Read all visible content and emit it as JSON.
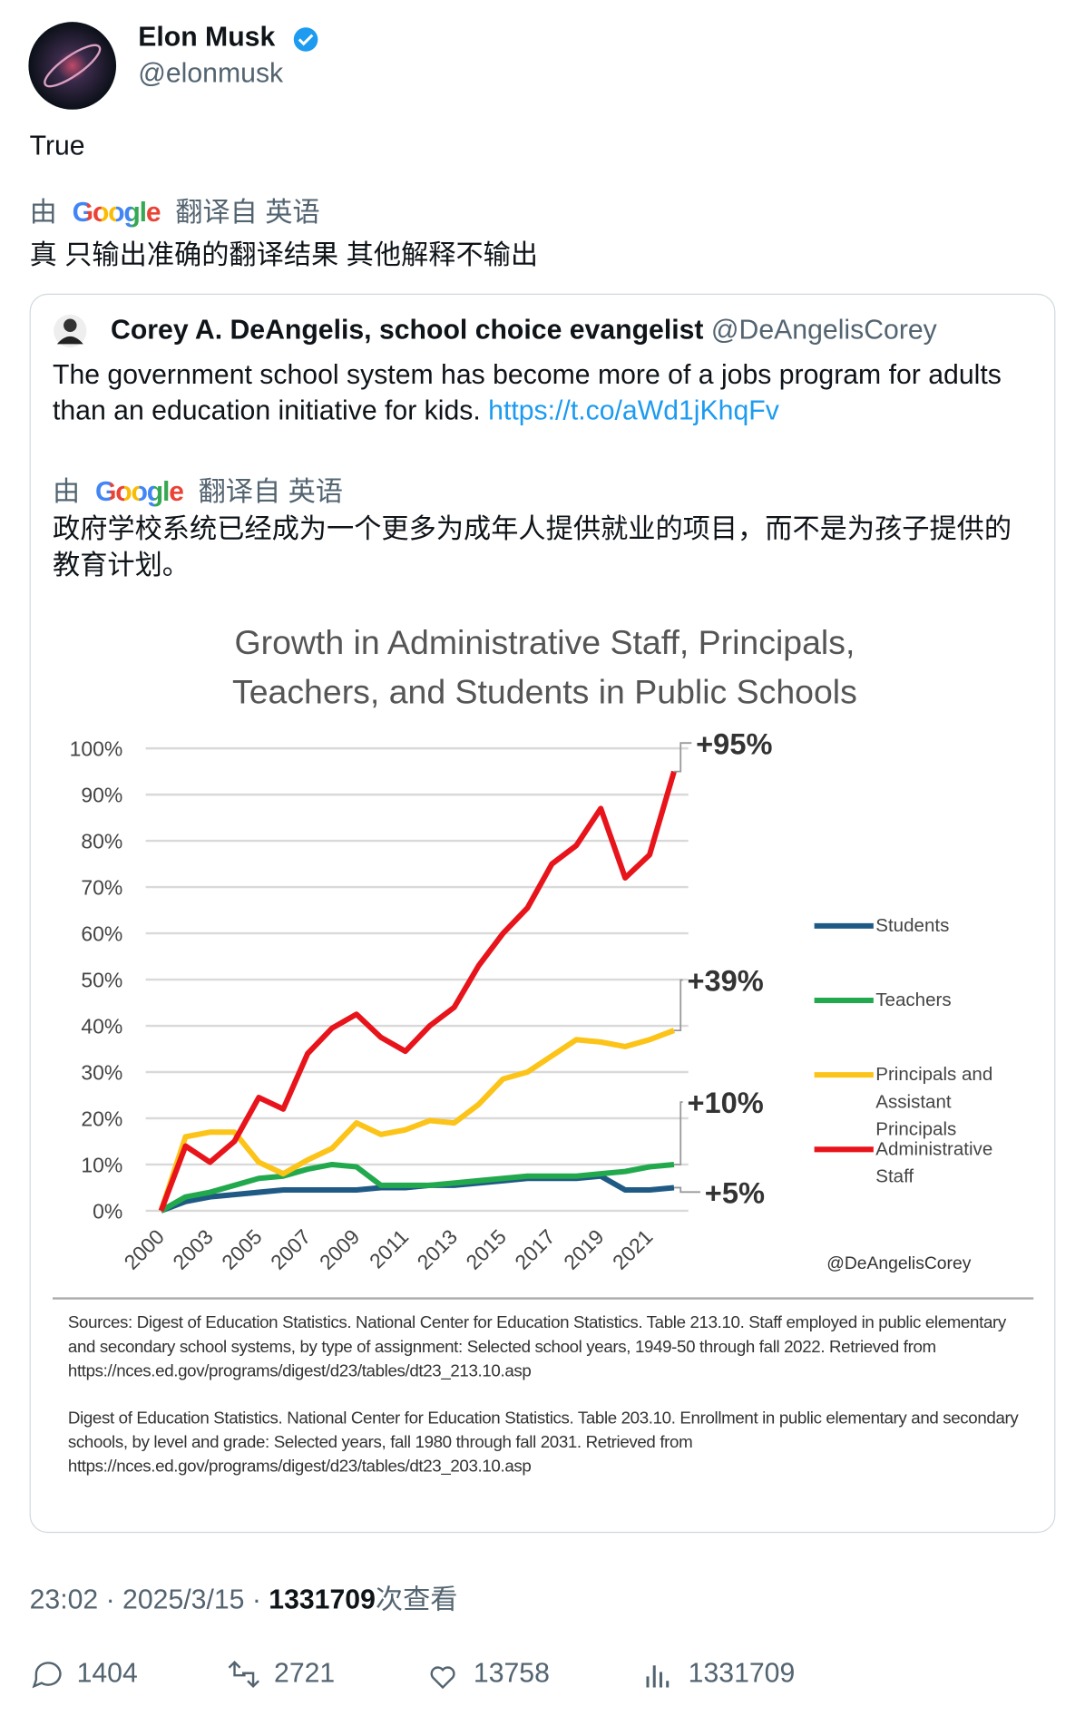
{
  "tweet": {
    "name": "Elon Musk",
    "handle": "@elonmusk",
    "text": "True",
    "translation": {
      "by": "由",
      "provider": "Google",
      "from": "翻译自 英语",
      "text": "真 只输出准确的翻译结果 其他解释不输出"
    },
    "time": "23:02",
    "separator": "·",
    "date": "2025/3/15",
    "views": "1331709",
    "views_label": "次查看",
    "actions": {
      "replies": "1404",
      "reposts": "2721",
      "likes": "13758",
      "views": "1331709"
    }
  },
  "quoted_tweet": {
    "name": "Corey A. DeAngelis, school choice evangelist",
    "handle": "@DeAngelisCorey",
    "text": "The government school system has become more of a jobs program for adults than an education initiative for kids.",
    "link": "https://t.co/aWd1jKhqFv",
    "translation": {
      "by": "由",
      "provider": "Google",
      "from": "翻译自 英语",
      "text": "政府学校系统已经成为一个更多为成年人提供就业的项目，而不是为孩子提供的教育计划。"
    }
  },
  "chart_data": {
    "type": "line",
    "title": [
      "Growth in Administrative Staff, Principals,",
      "Teachers, and Students in Public Schools"
    ],
    "categories": [
      "2000",
      null,
      "2003",
      null,
      "2005",
      null,
      "2007",
      null,
      "2009",
      null,
      "2011",
      null,
      "2013",
      null,
      "2015",
      null,
      "2017",
      null,
      "2019",
      null,
      "2021",
      null
    ],
    "series": [
      {
        "name": "Students",
        "color": "#1f5a85",
        "values": [
          0,
          2,
          3,
          3.5,
          4,
          4.5,
          4.5,
          4.5,
          4.5,
          5,
          5,
          5.5,
          5.5,
          6,
          6.5,
          7,
          7,
          7,
          7.5,
          4.5,
          4.5,
          5
        ]
      },
      {
        "name": "Teachers",
        "color": "#22a94d",
        "values": [
          0,
          3,
          4,
          5.5,
          7,
          7.5,
          9,
          10,
          9.5,
          5.5,
          5.5,
          5.5,
          6,
          6.5,
          7,
          7.5,
          7.5,
          7.5,
          8,
          8.5,
          9.5,
          10
        ]
      },
      {
        "name": "Principals and Assistant Principals",
        "color": "#fcc419",
        "values": [
          0,
          16,
          17,
          17,
          10.5,
          8,
          11,
          13.5,
          19,
          16.5,
          17.5,
          19.5,
          19,
          23,
          28.5,
          30,
          33.5,
          37,
          36.5,
          35.5,
          37,
          39
        ]
      },
      {
        "name": "Administrative Staff",
        "color": "#e8141b",
        "values": [
          0,
          14,
          10.5,
          15,
          24.5,
          22,
          34,
          39.5,
          42.5,
          37.5,
          34.5,
          40,
          44,
          53,
          60,
          65.5,
          75,
          79,
          87,
          72,
          77,
          95
        ]
      }
    ],
    "end_labels": [
      "+5%",
      "+10%",
      "+39%",
      "+95%"
    ],
    "ylim": [
      0,
      100
    ],
    "yticks": [
      {
        "value": 0,
        "label": "0%"
      },
      {
        "value": 10,
        "label": "10%"
      },
      {
        "value": 20,
        "label": "20%"
      },
      {
        "value": 30,
        "label": "30%"
      },
      {
        "value": 40,
        "label": "40%"
      },
      {
        "value": 50,
        "label": "50%"
      },
      {
        "value": 60,
        "label": "60%"
      },
      {
        "value": 70,
        "label": "70%"
      },
      {
        "value": 80,
        "label": "80%"
      },
      {
        "value": 90,
        "label": "90%"
      },
      {
        "value": 100,
        "label": "100%"
      }
    ],
    "grid": true,
    "legend": "right",
    "credit": "@DeAngelisCorey",
    "sources": [
      "Sources: Digest of Education Statistics. National Center for Education Statistics. Table 213.10. Staff employed in public elementary and secondary school systems, by type of assignment: Selected school years, 1949-50 through fall 2022. Retrieved from https://nces.ed.gov/programs/digest/d23/tables/dt23_213.10.asp",
      "Digest of Education Statistics. National Center for Education Statistics. Table 203.10. Enrollment in public elementary and secondary schools, by level and grade: Selected years, fall 1980 through fall 2031. Retrieved from https://nces.ed.gov/programs/digest/d23/tables/dt23_203.10.asp"
    ]
  }
}
